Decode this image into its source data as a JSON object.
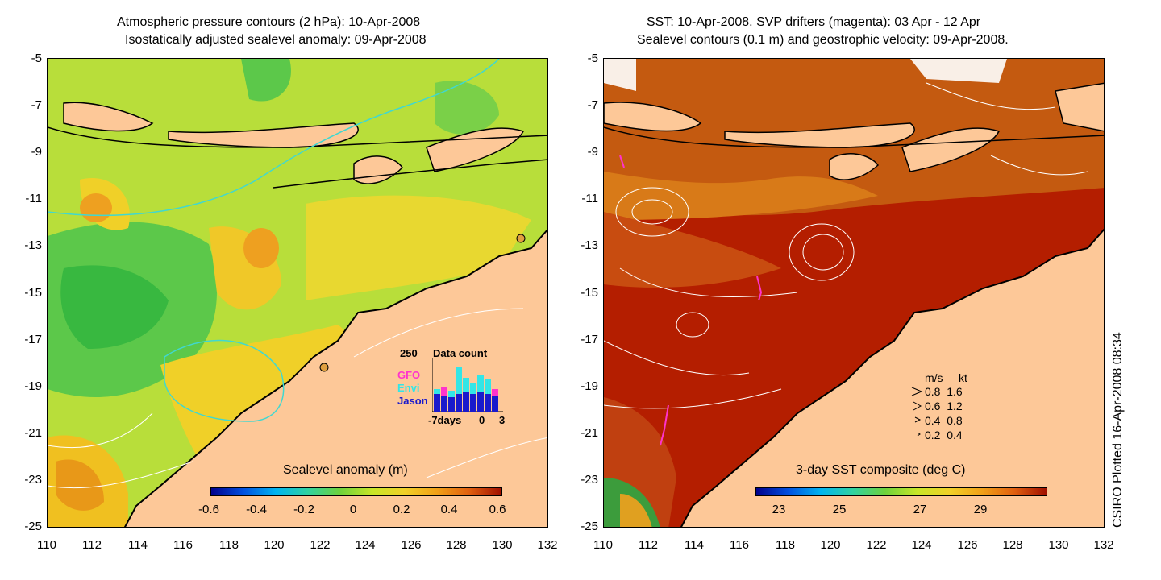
{
  "left_panel": {
    "title_line1": "Atmospheric pressure contours (2 hPa): 10-Apr-2008",
    "title_line2": "Isostatically adjusted sealevel anomaly: 09-Apr-2008",
    "colorbar_title": "Sealevel anomaly (m)",
    "colorbar_ticks": [
      "-0.6",
      "-0.4",
      "-0.2",
      "0",
      "0.2",
      "0.4",
      "0.6"
    ],
    "inset": {
      "title": "Data count",
      "ymax_label": "250",
      "series": [
        "GFO",
        "Envi",
        "Jason"
      ],
      "series_colors": [
        "#ff33cc",
        "#33e6e6",
        "#1a1acc"
      ],
      "x_labels": [
        "-7days",
        "0",
        "3"
      ]
    }
  },
  "right_panel": {
    "title_line1": "SST: 10-Apr-2008. SVP drifters (magenta): 03 Apr - 12 Apr",
    "title_line2": "Sealevel contours (0.1 m) and geostrophic velocity: 09-Apr-2008.",
    "colorbar_title": "3-day SST composite (deg C)",
    "colorbar_ticks": [
      "23",
      "25",
      "27",
      "29"
    ],
    "velocity_legend": {
      "header_ms": "m/s",
      "header_kt": "kt",
      "rows": [
        {
          "ms": "0.8",
          "kt": "1.6"
        },
        {
          "ms": "0.6",
          "kt": "1.2"
        },
        {
          "ms": "0.4",
          "kt": "0.8"
        },
        {
          "ms": "0.2",
          "kt": "0.4"
        }
      ]
    }
  },
  "axes": {
    "y_ticks": [
      "-5",
      "-7",
      "-9",
      "-11",
      "-13",
      "-15",
      "-17",
      "-19",
      "-21",
      "-23",
      "-25"
    ],
    "x_ticks": [
      "110",
      "112",
      "114",
      "116",
      "118",
      "120",
      "122",
      "124",
      "126",
      "128",
      "130",
      "132"
    ]
  },
  "credit": "CSIRO Plotted 16-Apr-2008 08:34",
  "colors": {
    "land": "#fdc898",
    "ocean_slа_base": "#c8e640",
    "sst_base": "#b41e00"
  }
}
